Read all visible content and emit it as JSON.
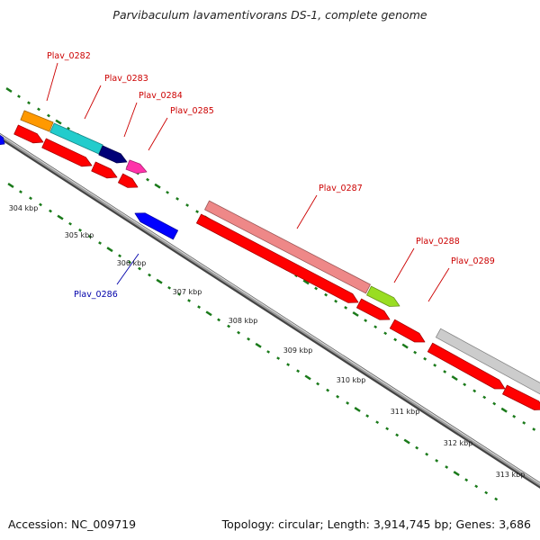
{
  "title": "Parvibaculum lavamentivorans DS-1, complete genome",
  "footer": {
    "accession": "Accession: NC_009719",
    "summary": "Topology: circular; Length: 3,914,745 bp; Genes: 3,686"
  },
  "colors": {
    "backbone": "#888888",
    "tick": "#1a7a1a",
    "cds": "#ff0000",
    "minus_strand": "#0000ff",
    "label_plus": "#cc0000",
    "label_minus": "#0000aa"
  },
  "scale": {
    "unit": "kbp",
    "ticks": [
      {
        "label": "304 kbp"
      },
      {
        "label": "305 kbp"
      },
      {
        "label": "306 kbp"
      },
      {
        "label": "307 kbp"
      },
      {
        "label": "308 kbp"
      },
      {
        "label": "309 kbp"
      },
      {
        "label": "310 kbp"
      },
      {
        "label": "311 kbp"
      },
      {
        "label": "312 kbp"
      },
      {
        "label": "313 kbp"
      }
    ]
  },
  "genes": [
    {
      "name": "Plav_0282",
      "color": "#ff9900"
    },
    {
      "name": "Plav_0283",
      "color": "#22cccc"
    },
    {
      "name": "Plav_0284",
      "color": "#000077"
    },
    {
      "name": "Plav_0285",
      "color": "#ff33aa"
    },
    {
      "name": "Plav_0286",
      "color": "#0000ff"
    },
    {
      "name": "Plav_0287",
      "color": "#ee8888"
    },
    {
      "name": "Plav_0288",
      "color": "#99dd22"
    },
    {
      "name": "Plav_0289",
      "color": "#cccccc"
    }
  ]
}
